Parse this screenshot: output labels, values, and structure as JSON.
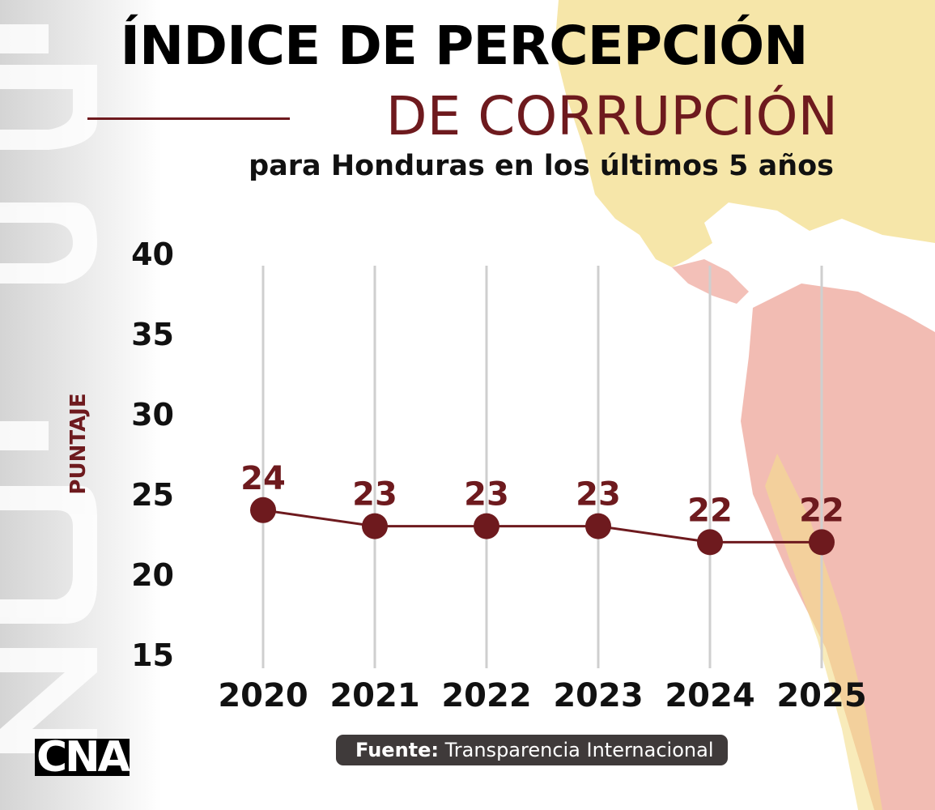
{
  "header": {
    "title_line1": "ÍNDICE DE PERCEPCIÓN",
    "title_line2": "DE CORRUPCIÓN",
    "subtitle": "para Honduras en los últimos 5 años"
  },
  "watermark": "ÍNDICE",
  "footer": {
    "logo": "CNA",
    "source_label": "Fuente:",
    "source_value": "Transparencia Internacional"
  },
  "colors": {
    "accent": "#6e1a1e",
    "grid": "#cfcfcf",
    "map_yellow": "#f3dd8c",
    "map_pink": "#eea59a"
  },
  "chart_data": {
    "type": "line",
    "title": "ÍNDICE DE PERCEPCIÓN DE CORRUPCIÓN",
    "subtitle": "para Honduras en los últimos 5 años",
    "xlabel": "",
    "ylabel": "PUNTAJE",
    "categories": [
      "2020",
      "2021",
      "2022",
      "2023",
      "2024",
      "2025"
    ],
    "values": [
      24,
      23,
      23,
      23,
      22,
      22
    ],
    "ylim": [
      15,
      40
    ],
    "yticks": [
      15,
      20,
      25,
      30,
      35,
      40
    ],
    "grid": "vertical",
    "legend": "none"
  }
}
